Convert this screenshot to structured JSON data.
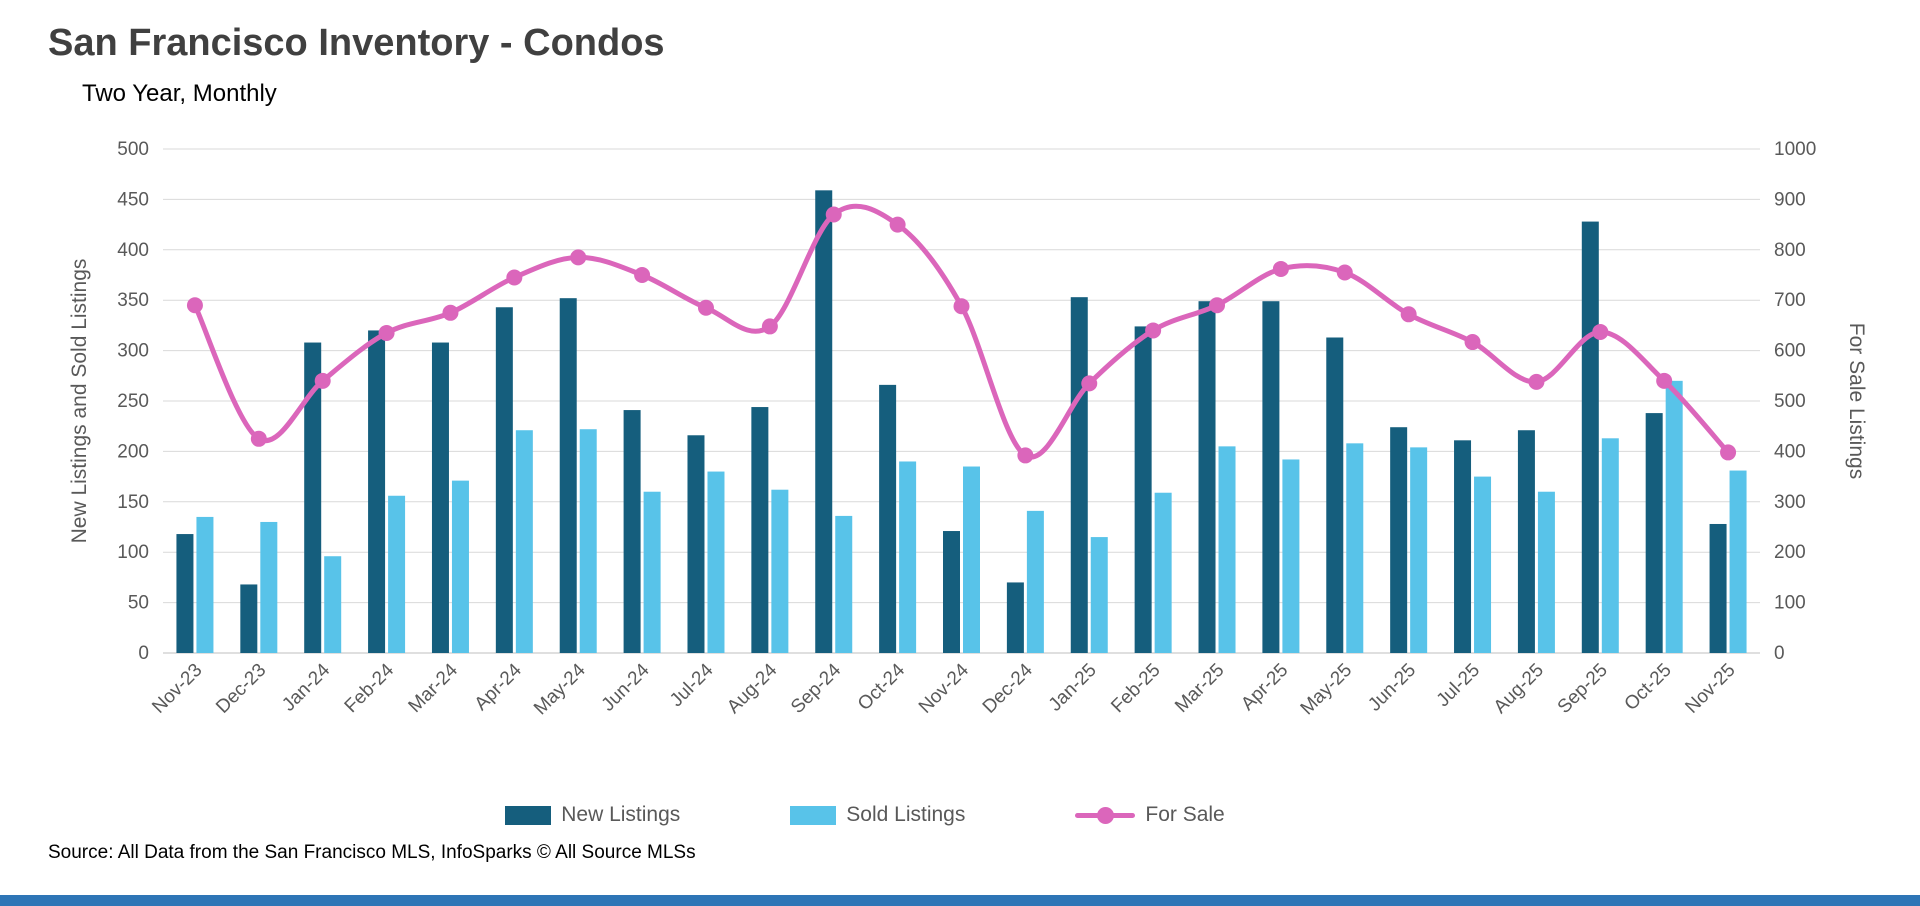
{
  "title": "San Francisco Inventory - Condos",
  "subtitle": "Two Year, Monthly",
  "source": "Source: All Data from the San Francisco MLS, InfoSparks © All Source MLSs",
  "colors": {
    "new_listings": "#155E7D",
    "sold_listings": "#58C3E9",
    "for_sale": "#DB66BB",
    "grid": "#D9D9D9",
    "axis_line": "#BFBFBF",
    "axis_text": "#595959",
    "title_text": "#404040",
    "accent_bar": "#2E75B6"
  },
  "chart_data": {
    "type": "combo-bar-line",
    "title": "San Francisco Inventory - Condos",
    "subtitle": "Two Year, Monthly",
    "grid": true,
    "legend_position": "bottom",
    "categories": [
      "Nov-23",
      "Dec-23",
      "Jan-24",
      "Feb-24",
      "Mar-24",
      "Apr-24",
      "May-24",
      "Jun-24",
      "Jul-24",
      "Aug-24",
      "Sep-24",
      "Oct-24",
      "Nov-24",
      "Dec-24",
      "Jan-25",
      "Feb-25",
      "Mar-25",
      "Apr-25",
      "May-25",
      "Jun-25",
      "Jul-25",
      "Aug-25",
      "Sep-25",
      "Oct-25",
      "Nov-25"
    ],
    "left_axis": {
      "label": "New Listings and Sold Listings",
      "min": 0,
      "max": 500,
      "step": 50
    },
    "right_axis": {
      "label": "For Sale Listings",
      "min": 0,
      "max": 1000,
      "step": 100
    },
    "series": [
      {
        "name": "New Listings",
        "type": "bar",
        "axis": "left",
        "values": [
          118,
          68,
          308,
          320,
          308,
          343,
          352,
          241,
          216,
          244,
          459,
          266,
          121,
          70,
          353,
          324,
          349,
          349,
          313,
          224,
          211,
          221,
          428,
          238,
          128
        ]
      },
      {
        "name": "Sold Listings",
        "type": "bar",
        "axis": "left",
        "values": [
          135,
          130,
          96,
          156,
          171,
          221,
          222,
          160,
          180,
          162,
          136,
          190,
          185,
          141,
          115,
          159,
          205,
          192,
          208,
          204,
          175,
          160,
          213,
          270,
          181
        ]
      },
      {
        "name": "For Sale",
        "type": "line",
        "axis": "right",
        "values": [
          690,
          425,
          540,
          635,
          675,
          745,
          785,
          750,
          685,
          648,
          870,
          850,
          688,
          392,
          535,
          640,
          690,
          762,
          755,
          672,
          617,
          538,
          637,
          540,
          398
        ]
      }
    ]
  }
}
